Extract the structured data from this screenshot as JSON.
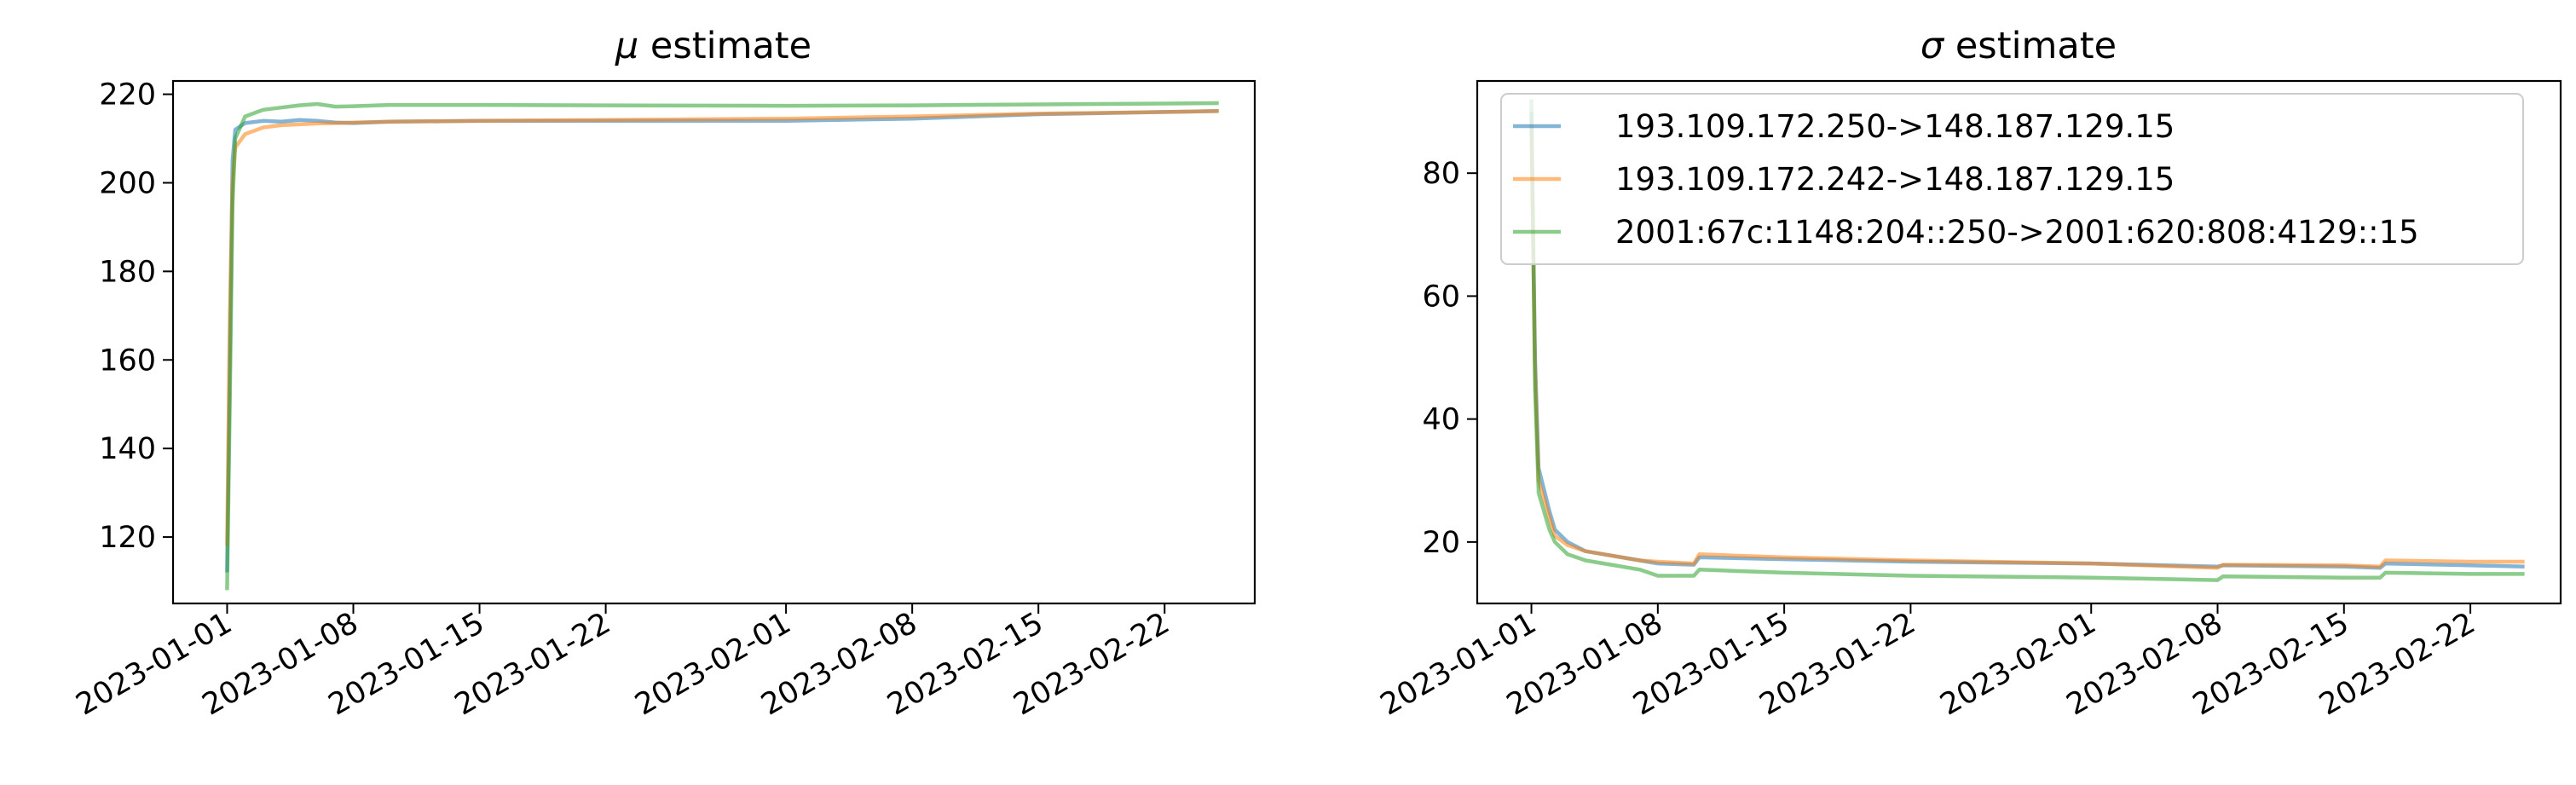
{
  "chart_data": [
    {
      "type": "line",
      "title": "μ estimate",
      "title_symbol": "μ",
      "title_text": "estimate",
      "xlabel": "",
      "ylabel": "",
      "x_ticks": [
        "2023-01-01",
        "2023-01-08",
        "2023-01-15",
        "2023-01-22",
        "2023-02-01",
        "2023-02-08",
        "2023-02-15",
        "2023-02-22"
      ],
      "y_ticks": [
        120,
        140,
        160,
        180,
        200,
        220
      ],
      "xlim": [
        "2022-12-29",
        "2023-02-27"
      ],
      "ylim": [
        105,
        223
      ],
      "grid": false,
      "series": [
        {
          "color": "#1f77b4",
          "x": [
            "2023-01-01",
            "2023-01-01",
            "2023-01-01",
            "2023-01-01",
            "2023-01-02",
            "2023-01-03",
            "2023-01-04",
            "2023-01-05",
            "2023-01-06",
            "2023-01-07",
            "2023-01-08",
            "2023-01-10",
            "2023-01-15",
            "2023-01-22",
            "2023-02-01",
            "2023-02-08",
            "2023-02-15",
            "2023-02-22",
            "2023-02-25"
          ],
          "values": [
            112,
            160,
            205,
            212,
            213.5,
            214,
            213.8,
            214.2,
            214,
            213.6,
            213.5,
            213.8,
            214,
            214,
            214,
            214.5,
            215.5,
            216,
            216.2
          ]
        },
        {
          "color": "#ff7f0e",
          "x": [
            "2023-01-01",
            "2023-01-01",
            "2023-01-01",
            "2023-01-01",
            "2023-01-02",
            "2023-01-03",
            "2023-01-04",
            "2023-01-05",
            "2023-01-06",
            "2023-01-07",
            "2023-01-08",
            "2023-01-10",
            "2023-01-15",
            "2023-01-22",
            "2023-02-01",
            "2023-02-08",
            "2023-02-15",
            "2023-02-22",
            "2023-02-25"
          ],
          "values": [
            118,
            170,
            200,
            208,
            211,
            212.5,
            213,
            213.2,
            213.4,
            213.5,
            213.6,
            213.8,
            214,
            214.2,
            214.5,
            215,
            215.6,
            216,
            216.2
          ]
        },
        {
          "color": "#2ca02c",
          "x": [
            "2023-01-01",
            "2023-01-01",
            "2023-01-01",
            "2023-01-01",
            "2023-01-02",
            "2023-01-03",
            "2023-01-04",
            "2023-01-05",
            "2023-01-06",
            "2023-01-07",
            "2023-01-08",
            "2023-01-10",
            "2023-01-15",
            "2023-01-22",
            "2023-02-01",
            "2023-02-08",
            "2023-02-15",
            "2023-02-22",
            "2023-02-25"
          ],
          "values": [
            108,
            150,
            195,
            210,
            215,
            216.5,
            217,
            217.5,
            217.8,
            217.2,
            217.3,
            217.6,
            217.6,
            217.5,
            217.4,
            217.5,
            217.7,
            217.9,
            218
          ]
        }
      ]
    },
    {
      "type": "line",
      "title": "σ estimate",
      "title_symbol": "σ",
      "title_text": "estimate",
      "xlabel": "",
      "ylabel": "",
      "x_ticks": [
        "2023-01-01",
        "2023-01-08",
        "2023-01-15",
        "2023-01-22",
        "2023-02-01",
        "2023-02-08",
        "2023-02-15",
        "2023-02-22"
      ],
      "y_ticks": [
        20,
        40,
        60,
        80
      ],
      "xlim": [
        "2022-12-29",
        "2023-02-27"
      ],
      "ylim": [
        10,
        95
      ],
      "grid": false,
      "legend": {
        "placement": "upper-right"
      },
      "series": [
        {
          "name": "193.109.172.250->148.187.129.15",
          "color": "#1f77b4",
          "x": [
            "2023-01-01",
            "2023-01-01",
            "2023-01-01",
            "2023-01-02",
            "2023-01-02",
            "2023-01-03",
            "2023-01-04",
            "2023-01-05",
            "2023-01-06",
            "2023-01-07",
            "2023-01-08",
            "2023-01-10",
            "2023-01-10",
            "2023-01-15",
            "2023-01-22",
            "2023-02-01",
            "2023-02-08",
            "2023-02-08",
            "2023-02-15",
            "2023-02-17",
            "2023-02-17",
            "2023-02-22",
            "2023-02-25"
          ],
          "values": [
            90,
            50,
            32,
            25,
            22,
            20,
            18.5,
            18,
            17.5,
            17,
            16.5,
            16.3,
            17.5,
            17.2,
            16.8,
            16.5,
            16,
            16.2,
            16,
            15.8,
            16.5,
            16.2,
            16
          ]
        },
        {
          "name": "193.109.172.242->148.187.129.15",
          "color": "#ff7f0e",
          "x": [
            "2023-01-01",
            "2023-01-01",
            "2023-01-01",
            "2023-01-02",
            "2023-01-02",
            "2023-01-03",
            "2023-01-04",
            "2023-01-05",
            "2023-01-06",
            "2023-01-07",
            "2023-01-08",
            "2023-01-10",
            "2023-01-10",
            "2023-01-15",
            "2023-01-22",
            "2023-02-01",
            "2023-02-08",
            "2023-02-08",
            "2023-02-15",
            "2023-02-17",
            "2023-02-17",
            "2023-02-22",
            "2023-02-25"
          ],
          "values": [
            88,
            48,
            30,
            24,
            21,
            19.5,
            18.5,
            18,
            17.5,
            17,
            16.8,
            16.5,
            18,
            17.5,
            17,
            16.5,
            15.8,
            16.3,
            16.2,
            16,
            17,
            16.8,
            16.8
          ]
        },
        {
          "name": "2001:67c:1148:204::250->2001:620:808:4129::15",
          "color": "#2ca02c",
          "x": [
            "2023-01-01",
            "2023-01-01",
            "2023-01-01",
            "2023-01-02",
            "2023-01-02",
            "2023-01-03",
            "2023-01-04",
            "2023-01-05",
            "2023-01-06",
            "2023-01-07",
            "2023-01-08",
            "2023-01-10",
            "2023-01-10",
            "2023-01-15",
            "2023-01-22",
            "2023-02-01",
            "2023-02-08",
            "2023-02-08",
            "2023-02-15",
            "2023-02-17",
            "2023-02-17",
            "2023-02-22",
            "2023-02-25"
          ],
          "values": [
            92,
            45,
            28,
            22,
            20,
            18,
            17,
            16.5,
            16,
            15.5,
            14.5,
            14.5,
            15.5,
            15,
            14.5,
            14.2,
            13.8,
            14.4,
            14.2,
            14.2,
            15,
            14.8,
            14.8
          ]
        }
      ]
    }
  ]
}
